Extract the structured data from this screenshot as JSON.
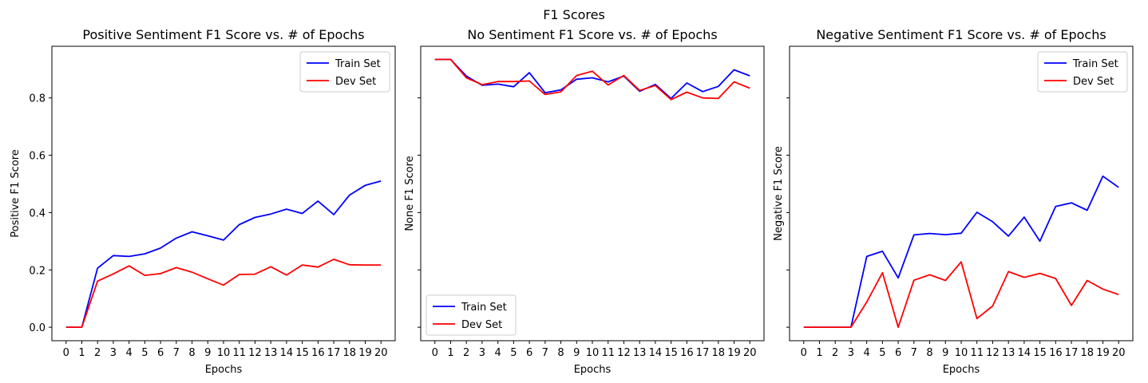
{
  "figure": {
    "suptitle": "F1 Scores"
  },
  "chart_data": [
    {
      "type": "line",
      "title": "Positive Sentiment F1 Score vs. # of Epochs",
      "xlabel": "Epochs",
      "ylabel": "Positive F1 Score",
      "x": [
        0,
        1,
        2,
        3,
        4,
        5,
        6,
        7,
        8,
        9,
        10,
        11,
        12,
        13,
        14,
        15,
        16,
        17,
        18,
        19,
        20
      ],
      "xlim": [
        -0.9,
        20.9
      ],
      "ylim": [
        -0.047,
        0.98
      ],
      "yticks": [
        "0.0",
        "0.2",
        "0.4",
        "0.6",
        "0.8"
      ],
      "ytick_values": [
        0.0,
        0.2,
        0.4,
        0.6,
        0.8
      ],
      "show_yticklabels": true,
      "legend": "top-right",
      "series": [
        {
          "name": "Train Set",
          "color": "#0000ff",
          "values": [
            0.0,
            0.0,
            0.206,
            0.25,
            0.247,
            0.256,
            0.276,
            0.311,
            0.333,
            0.319,
            0.304,
            0.358,
            0.383,
            0.395,
            0.412,
            0.397,
            0.44,
            0.393,
            0.461,
            0.495,
            0.51
          ]
        },
        {
          "name": "Dev Set",
          "color": "#ff0000",
          "values": [
            0.0,
            0.0,
            0.161,
            0.186,
            0.214,
            0.181,
            0.187,
            0.208,
            0.192,
            0.169,
            0.147,
            0.184,
            0.185,
            0.211,
            0.182,
            0.217,
            0.21,
            0.237,
            0.218,
            0.217,
            0.217
          ]
        }
      ]
    },
    {
      "type": "line",
      "title": "No Sentiment F1 Score vs. # of Epochs",
      "xlabel": "Epochs",
      "ylabel": "None F1 Score",
      "x": [
        0,
        1,
        2,
        3,
        4,
        5,
        6,
        7,
        8,
        9,
        10,
        11,
        12,
        13,
        14,
        15,
        16,
        17,
        18,
        19,
        20
      ],
      "xlim": [
        -0.9,
        20.9
      ],
      "ylim": [
        -0.047,
        0.98
      ],
      "ytick_values": [
        0.0,
        0.2,
        0.4,
        0.6,
        0.8
      ],
      "show_yticklabels": false,
      "legend": "bottom-left",
      "series": [
        {
          "name": "Train Set",
          "color": "#0000ff",
          "values": [
            0.934,
            0.934,
            0.876,
            0.844,
            0.848,
            0.839,
            0.888,
            0.818,
            0.828,
            0.865,
            0.87,
            0.856,
            0.876,
            0.823,
            0.847,
            0.798,
            0.852,
            0.822,
            0.84,
            0.898,
            0.877
          ]
        },
        {
          "name": "Dev Set",
          "color": "#ff0000",
          "values": [
            0.934,
            0.934,
            0.87,
            0.846,
            0.857,
            0.857,
            0.859,
            0.812,
            0.821,
            0.878,
            0.893,
            0.845,
            0.878,
            0.826,
            0.843,
            0.794,
            0.82,
            0.8,
            0.798,
            0.856,
            0.834
          ]
        }
      ]
    },
    {
      "type": "line",
      "title": "Negative Sentiment F1 Score vs. # of Epochs",
      "xlabel": "Epochs",
      "ylabel": "Negative F1 Score",
      "x": [
        0,
        1,
        2,
        3,
        4,
        5,
        6,
        7,
        8,
        9,
        10,
        11,
        12,
        13,
        14,
        15,
        16,
        17,
        18,
        19,
        20
      ],
      "xlim": [
        -0.9,
        20.9
      ],
      "ylim": [
        -0.047,
        0.98
      ],
      "ytick_values": [
        0.0,
        0.2,
        0.4,
        0.6,
        0.8
      ],
      "show_yticklabels": false,
      "legend": "top-right",
      "series": [
        {
          "name": "Train Set",
          "color": "#0000ff",
          "values": [
            0.0,
            0.0,
            0.0,
            0.0,
            0.247,
            0.265,
            0.172,
            0.322,
            0.327,
            0.323,
            0.328,
            0.401,
            0.368,
            0.318,
            0.384,
            0.3,
            0.421,
            0.434,
            0.408,
            0.527,
            0.488
          ]
        },
        {
          "name": "Dev Set",
          "color": "#ff0000",
          "values": [
            0.0,
            0.0,
            0.0,
            0.0,
            0.088,
            0.19,
            0.0,
            0.164,
            0.183,
            0.163,
            0.228,
            0.03,
            0.074,
            0.194,
            0.174,
            0.188,
            0.17,
            0.076,
            0.163,
            0.133,
            0.114
          ]
        }
      ]
    }
  ]
}
